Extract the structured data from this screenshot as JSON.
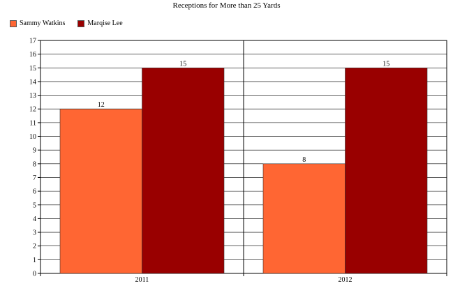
{
  "chart_data": {
    "type": "bar",
    "title": "Receptions for More than 25 Yards",
    "categories": [
      "2011",
      "2012"
    ],
    "series": [
      {
        "name": "Sammy Watkins",
        "values": [
          12,
          8
        ],
        "color": "#ff6633"
      },
      {
        "name": "Marqise Lee",
        "values": [
          15,
          15
        ],
        "color": "#990000"
      }
    ],
    "xlabel": "",
    "ylabel": "",
    "ylim": [
      0,
      17
    ],
    "yticks": [
      0,
      1,
      2,
      3,
      4,
      5,
      6,
      7,
      8,
      9,
      10,
      11,
      12,
      13,
      14,
      15,
      16,
      17
    ],
    "grid": true,
    "legend": "top-left"
  }
}
